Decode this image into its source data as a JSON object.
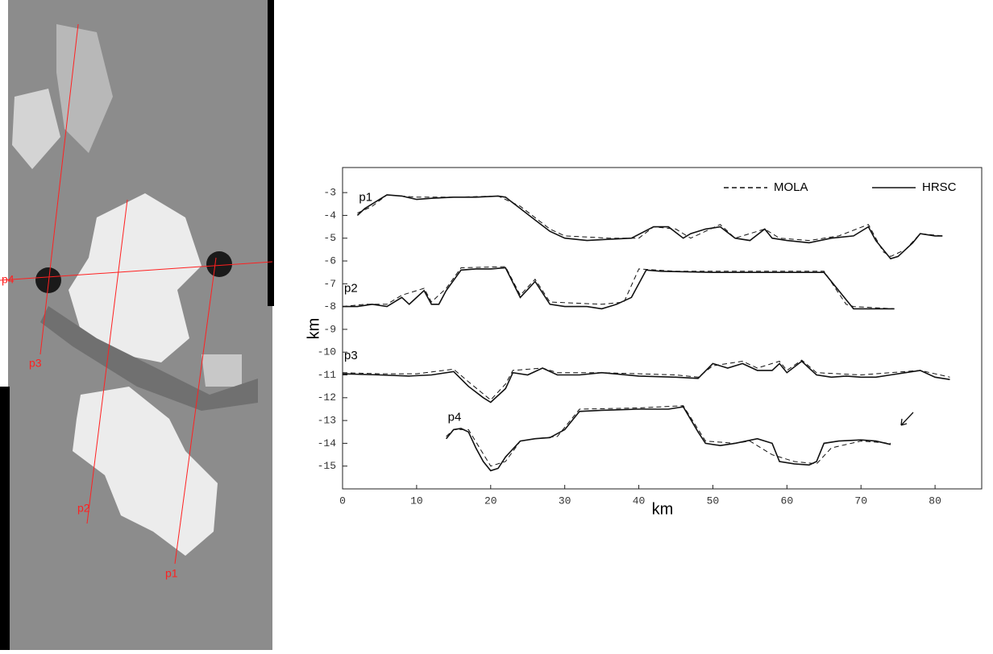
{
  "chart_data": {
    "type": "line",
    "xlabel": "km",
    "ylabel": "km",
    "xlim": [
      0,
      86.3
    ],
    "ylim": [
      -16,
      -1.9
    ],
    "xticks": [
      0,
      10,
      20,
      30,
      40,
      50,
      60,
      70,
      80
    ],
    "yticks": [
      -3,
      -4,
      -5,
      -6,
      -7,
      -8,
      -9,
      -10,
      -11,
      -12,
      -13,
      -14,
      -15
    ],
    "color": "#111111",
    "legend": [
      {
        "label": "MOLA",
        "dash": "6,4"
      },
      {
        "label": "HRSC",
        "dash": "none"
      }
    ],
    "profiles": [
      {
        "label": "p1",
        "hrsc": {
          "x": [
            2,
            3,
            5,
            6,
            8,
            10,
            12,
            15,
            18,
            21,
            22,
            24,
            26,
            28,
            30,
            33,
            36,
            39,
            42,
            44,
            46,
            47,
            49,
            51,
            53,
            55,
            57,
            58,
            60,
            63,
            66,
            69,
            71,
            72,
            74,
            75,
            77,
            78,
            80,
            81
          ],
          "values": [
            -4.0,
            -3.7,
            -3.3,
            -3.1,
            -3.15,
            -3.3,
            -3.25,
            -3.2,
            -3.2,
            -3.15,
            -3.2,
            -3.7,
            -4.2,
            -4.7,
            -5.0,
            -5.1,
            -5.05,
            -5.0,
            -4.5,
            -4.5,
            -5.0,
            -4.8,
            -4.6,
            -4.5,
            -5.0,
            -5.1,
            -4.6,
            -5.0,
            -5.1,
            -5.2,
            -5.0,
            -4.9,
            -4.5,
            -5.1,
            -5.9,
            -5.8,
            -5.2,
            -4.8,
            -4.9,
            -4.9
          ]
        },
        "mola": {
          "x": [
            2,
            4,
            6,
            10,
            15,
            21,
            24,
            28,
            30,
            36,
            40,
            42,
            45,
            47,
            51,
            53,
            57,
            59,
            63,
            67,
            71,
            73,
            74,
            76,
            78,
            81
          ],
          "values": [
            -3.9,
            -3.6,
            -3.1,
            -3.2,
            -3.2,
            -3.15,
            -3.6,
            -4.6,
            -4.9,
            -5.0,
            -5.0,
            -4.5,
            -4.6,
            -5.0,
            -4.4,
            -5.0,
            -4.6,
            -5.0,
            -5.1,
            -4.9,
            -4.4,
            -5.6,
            -5.8,
            -5.5,
            -4.8,
            -4.9
          ]
        }
      },
      {
        "label": "p2",
        "hrsc": {
          "x": [
            0,
            2,
            4,
            6,
            8,
            9,
            11,
            12,
            13,
            14,
            16,
            18,
            20,
            22,
            24,
            26,
            28,
            30,
            33,
            35,
            37,
            39,
            41,
            43,
            50,
            60,
            65,
            68,
            69,
            72,
            74.5
          ],
          "values": [
            -8.0,
            -8.0,
            -7.9,
            -8.0,
            -7.6,
            -7.9,
            -7.3,
            -7.9,
            -7.9,
            -7.3,
            -6.4,
            -6.35,
            -6.35,
            -6.3,
            -7.6,
            -6.9,
            -7.9,
            -8.0,
            -8.0,
            -8.1,
            -7.9,
            -7.6,
            -6.4,
            -6.45,
            -6.5,
            -6.5,
            -6.5,
            -7.7,
            -8.1,
            -8.1,
            -8.1
          ]
        },
        "mola": {
          "x": [
            0,
            3,
            6,
            8,
            11,
            12,
            14,
            16,
            22,
            24,
            26,
            28,
            35,
            38,
            40,
            45,
            55,
            65,
            68,
            69,
            74.5
          ],
          "values": [
            -8.0,
            -7.9,
            -7.9,
            -7.5,
            -7.2,
            -7.8,
            -7.2,
            -6.3,
            -6.25,
            -7.5,
            -6.8,
            -7.8,
            -7.9,
            -7.8,
            -6.35,
            -6.45,
            -6.45,
            -6.45,
            -7.9,
            -8.0,
            -8.1
          ]
        }
      },
      {
        "label": "p3",
        "hrsc": {
          "x": [
            0,
            5,
            9,
            12,
            15,
            17,
            19,
            20,
            22,
            23,
            25,
            27,
            29,
            32,
            35,
            40,
            45,
            48,
            50,
            52,
            54,
            56,
            58,
            59,
            60,
            62,
            64,
            66,
            68,
            70,
            72,
            74,
            76,
            78,
            80,
            82
          ],
          "values": [
            -10.95,
            -11.0,
            -11.05,
            -11.0,
            -10.85,
            -11.5,
            -12.0,
            -12.2,
            -11.6,
            -10.9,
            -11.0,
            -10.7,
            -11.0,
            -11.0,
            -10.9,
            -11.05,
            -11.1,
            -11.15,
            -10.5,
            -10.7,
            -10.5,
            -10.8,
            -10.8,
            -10.5,
            -10.9,
            -10.4,
            -11.0,
            -11.1,
            -11.05,
            -11.1,
            -11.1,
            -11.0,
            -10.9,
            -10.8,
            -11.1,
            -11.2
          ]
        },
        "mola": {
          "x": [
            0,
            5,
            10,
            15,
            17,
            20,
            22,
            23,
            27,
            29,
            35,
            45,
            48,
            50,
            54,
            56,
            59,
            60,
            62,
            64,
            70,
            74,
            78,
            82
          ],
          "values": [
            -10.9,
            -10.95,
            -10.95,
            -10.75,
            -11.3,
            -12.1,
            -11.4,
            -10.8,
            -10.7,
            -10.9,
            -10.9,
            -11.0,
            -11.1,
            -10.6,
            -10.4,
            -10.7,
            -10.4,
            -10.8,
            -10.35,
            -10.9,
            -11.0,
            -10.9,
            -10.8,
            -11.1
          ]
        }
      },
      {
        "label": "p4",
        "hrsc": {
          "x": [
            14,
            15,
            16,
            17,
            18,
            19,
            20,
            21,
            22,
            24,
            26,
            28,
            30,
            32,
            35,
            40,
            44,
            46,
            48,
            49,
            51,
            53,
            56,
            58,
            59,
            61,
            63,
            64,
            65,
            67,
            70,
            72,
            74
          ],
          "values": [
            -13.8,
            -13.4,
            -13.35,
            -13.5,
            -14.2,
            -14.8,
            -15.2,
            -15.1,
            -14.6,
            -13.9,
            -13.8,
            -13.75,
            -13.4,
            -12.6,
            -12.55,
            -12.5,
            -12.5,
            -12.4,
            -13.5,
            -14.0,
            -14.1,
            -14.0,
            -13.8,
            -14.0,
            -14.8,
            -14.9,
            -14.95,
            -14.8,
            -14.0,
            -13.9,
            -13.85,
            -13.9,
            -14.05
          ]
        },
        "mola": {
          "x": [
            14,
            15,
            17,
            20,
            22,
            24,
            26,
            29,
            32,
            40,
            46,
            49,
            53,
            55,
            58,
            61,
            64,
            66,
            70,
            74
          ],
          "values": [
            -13.7,
            -13.4,
            -13.4,
            -15.0,
            -14.8,
            -13.9,
            -13.8,
            -13.7,
            -12.5,
            -12.45,
            -12.35,
            -13.9,
            -14.0,
            -13.9,
            -14.5,
            -14.8,
            -14.9,
            -14.2,
            -13.9,
            -14.0
          ]
        }
      }
    ]
  },
  "image": {
    "profile_labels": [
      "p4",
      "p3",
      "p2",
      "p1"
    ]
  }
}
